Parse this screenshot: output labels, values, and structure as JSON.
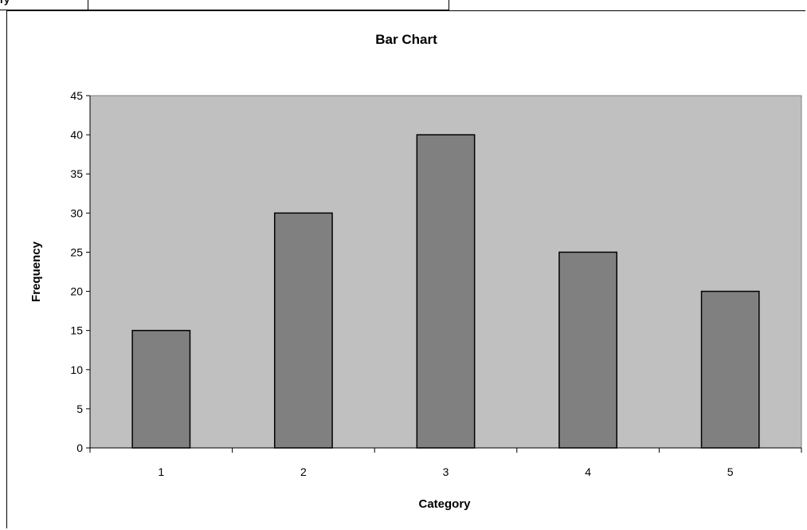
{
  "top_strip": {
    "text": "ry"
  },
  "chart_data": {
    "type": "bar",
    "title": "Bar Chart",
    "xlabel": "Category",
    "ylabel": "Frequency",
    "categories": [
      "1",
      "2",
      "3",
      "4",
      "5"
    ],
    "values": [
      15,
      30,
      40,
      25,
      20
    ],
    "ylim": [
      0,
      45
    ],
    "yticks": [
      0,
      5,
      10,
      15,
      20,
      25,
      30,
      35,
      40,
      45
    ],
    "grid": false,
    "legend": "none",
    "colors": {
      "plot_background": "#c0c0c0",
      "bar_fill": "#808080",
      "bar_stroke": "#000000"
    }
  }
}
